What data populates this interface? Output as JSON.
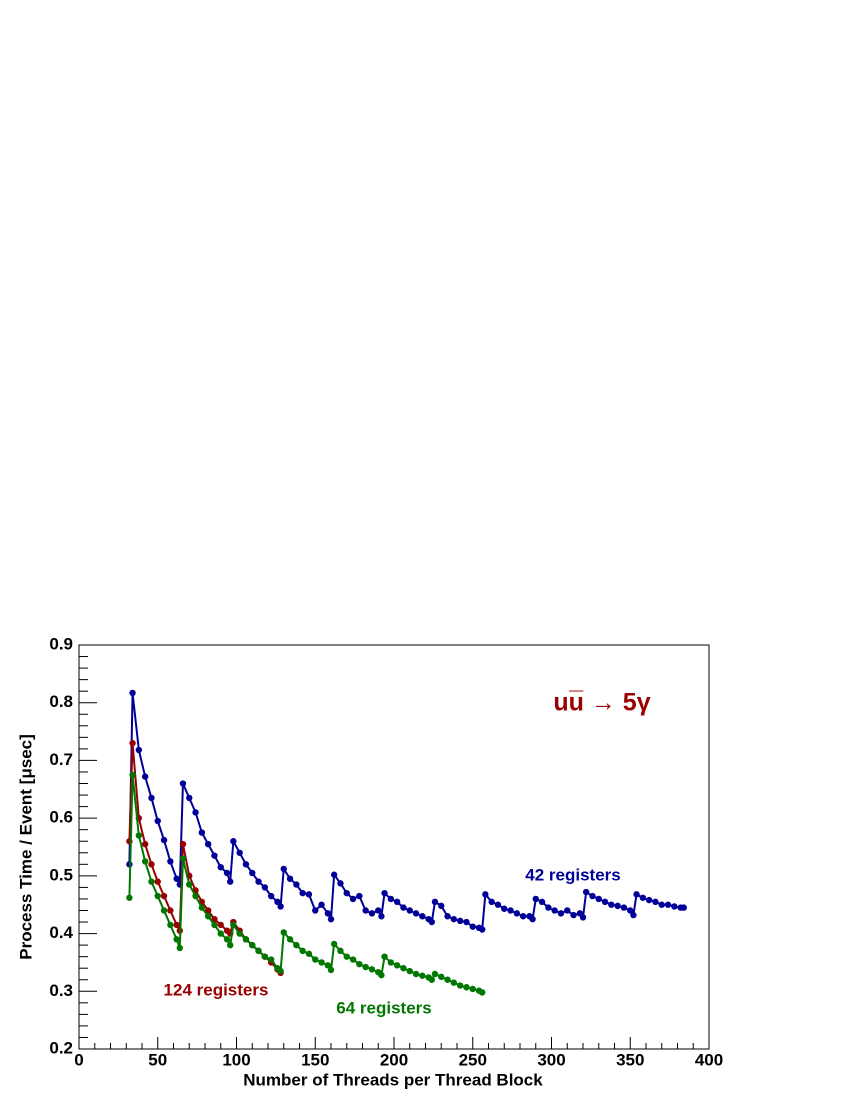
{
  "chart_data": {
    "type": "line",
    "xlabel": "Number of Threads per Thread Block",
    "ylabel": "Process Time / Event [μsec]",
    "annotation": "uu̅ → 5γ",
    "annotation_color": "#990000",
    "xlim": [
      0,
      400
    ],
    "xticks": [
      0,
      50,
      100,
      150,
      200,
      250,
      300,
      350,
      400
    ],
    "ylim": [
      0.2,
      0.9
    ],
    "yticks": [
      0.2,
      0.3,
      0.4,
      0.5,
      0.6,
      0.7,
      0.8,
      0.9
    ],
    "series": [
      {
        "name": "42 registers",
        "color": "#000099",
        "x": [
          32,
          34,
          38,
          42,
          46,
          50,
          54,
          58,
          62,
          64,
          66,
          70,
          74,
          78,
          82,
          86,
          90,
          94,
          96,
          98,
          102,
          106,
          110,
          114,
          118,
          122,
          126,
          128,
          130,
          134,
          138,
          142,
          146,
          150,
          154,
          158,
          160,
          162,
          166,
          170,
          174,
          178,
          182,
          186,
          190,
          192,
          194,
          198,
          202,
          206,
          210,
          214,
          218,
          222,
          224,
          226,
          230,
          234,
          238,
          242,
          246,
          250,
          254,
          256,
          258,
          262,
          266,
          270,
          274,
          278,
          282,
          286,
          288,
          290,
          294,
          298,
          302,
          306,
          310,
          314,
          318,
          320,
          322,
          326,
          330,
          334,
          338,
          342,
          346,
          350,
          352,
          354,
          358,
          362,
          366,
          370,
          374,
          378,
          382,
          384
        ],
        "values": [
          0.52,
          0.817,
          0.718,
          0.672,
          0.635,
          0.595,
          0.562,
          0.525,
          0.495,
          0.485,
          0.66,
          0.635,
          0.61,
          0.575,
          0.555,
          0.535,
          0.515,
          0.505,
          0.49,
          0.56,
          0.54,
          0.52,
          0.505,
          0.49,
          0.48,
          0.465,
          0.455,
          0.447,
          0.512,
          0.495,
          0.485,
          0.47,
          0.468,
          0.44,
          0.45,
          0.435,
          0.425,
          0.502,
          0.487,
          0.47,
          0.46,
          0.465,
          0.44,
          0.435,
          0.44,
          0.43,
          0.47,
          0.46,
          0.455,
          0.445,
          0.44,
          0.435,
          0.43,
          0.425,
          0.42,
          0.455,
          0.448,
          0.43,
          0.425,
          0.422,
          0.42,
          0.412,
          0.41,
          0.407,
          0.468,
          0.455,
          0.45,
          0.443,
          0.44,
          0.435,
          0.43,
          0.43,
          0.425,
          0.46,
          0.455,
          0.445,
          0.44,
          0.435,
          0.44,
          0.432,
          0.435,
          0.428,
          0.472,
          0.465,
          0.46,
          0.455,
          0.45,
          0.448,
          0.445,
          0.44,
          0.432,
          0.468,
          0.462,
          0.458,
          0.455,
          0.45,
          0.45,
          0.447,
          0.445,
          0.445
        ]
      },
      {
        "name": "124 registers",
        "color": "#990000",
        "x": [
          32,
          34,
          38,
          42,
          46,
          50,
          54,
          58,
          62,
          64,
          66,
          70,
          74,
          78,
          82,
          86,
          90,
          94,
          96,
          98,
          102,
          106,
          110,
          114,
          118,
          122,
          126,
          128
        ],
        "values": [
          0.56,
          0.73,
          0.6,
          0.555,
          0.52,
          0.49,
          0.465,
          0.44,
          0.415,
          0.405,
          0.555,
          0.5,
          0.475,
          0.455,
          0.44,
          0.425,
          0.415,
          0.405,
          0.4,
          0.42,
          0.405,
          0.39,
          0.38,
          0.37,
          0.36,
          0.35,
          0.338,
          0.332
        ]
      },
      {
        "name": "64 registers",
        "color": "#007700",
        "x": [
          32,
          34,
          38,
          42,
          46,
          50,
          54,
          58,
          62,
          64,
          66,
          70,
          74,
          78,
          82,
          86,
          90,
          94,
          96,
          98,
          102,
          106,
          110,
          114,
          118,
          122,
          126,
          128,
          130,
          134,
          138,
          142,
          146,
          150,
          154,
          158,
          160,
          162,
          166,
          170,
          174,
          178,
          182,
          186,
          190,
          192,
          194,
          198,
          202,
          206,
          210,
          214,
          218,
          222,
          224,
          226,
          230,
          234,
          238,
          242,
          246,
          250,
          254,
          256
        ],
        "values": [
          0.462,
          0.675,
          0.57,
          0.525,
          0.49,
          0.465,
          0.44,
          0.415,
          0.39,
          0.375,
          0.53,
          0.485,
          0.465,
          0.445,
          0.43,
          0.415,
          0.4,
          0.39,
          0.38,
          0.415,
          0.4,
          0.39,
          0.38,
          0.37,
          0.36,
          0.355,
          0.34,
          0.335,
          0.402,
          0.39,
          0.38,
          0.37,
          0.365,
          0.355,
          0.35,
          0.345,
          0.337,
          0.382,
          0.37,
          0.36,
          0.355,
          0.347,
          0.342,
          0.338,
          0.333,
          0.328,
          0.36,
          0.35,
          0.345,
          0.34,
          0.335,
          0.33,
          0.327,
          0.324,
          0.32,
          0.33,
          0.325,
          0.32,
          0.315,
          0.31,
          0.307,
          0.304,
          0.301,
          0.298
        ]
      }
    ]
  }
}
